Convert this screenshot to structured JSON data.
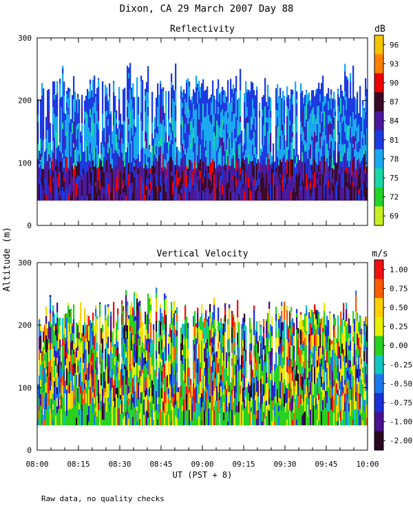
{
  "title": "Dixon, CA 29 March 2007  Day  88",
  "ylabel": "Altitude (m)",
  "xlabel": "UT  (PST + 8)",
  "footer": "Raw data, no quality checks",
  "chart_data": [
    {
      "type": "heatmap",
      "title": "Reflectivity",
      "ylabel": "Altitude (m)",
      "xlabel": "UT  (PST + 8)",
      "xlim": [
        "08:00",
        "10:00"
      ],
      "ylim": [
        0,
        300
      ],
      "x_ticks": [
        "08:00",
        "08:15",
        "08:30",
        "08:45",
        "09:00",
        "09:15",
        "09:30",
        "09:45",
        "10:00"
      ],
      "y_ticks": [
        0,
        100,
        200,
        300
      ],
      "colorbar": {
        "unit": "dB",
        "labels": [
          "96",
          "93",
          "90",
          "87",
          "84",
          "81",
          "78",
          "75",
          "72",
          "69"
        ],
        "colors": [
          "#f5c400",
          "#ff8000",
          "#ee0000",
          "#3a0a28",
          "#4a1a9c",
          "#1c3ae0",
          "#1aa8f0",
          "#18d8a8",
          "#22d42a",
          "#c8f020"
        ]
      },
      "data_description": {
        "echo_base_m": 40,
        "layer_top_m": [
          200,
          220
        ],
        "max_echo_top_m": 260,
        "core_below_m": 90
      }
    },
    {
      "type": "heatmap",
      "title": "Vertical Velocity",
      "ylabel": "Altitude (m)",
      "xlabel": "UT  (PST + 8)",
      "xlim": [
        "08:00",
        "10:00"
      ],
      "ylim": [
        0,
        300
      ],
      "x_ticks": [
        "08:00",
        "08:15",
        "08:30",
        "08:45",
        "09:00",
        "09:15",
        "09:30",
        "09:45",
        "10:00"
      ],
      "y_ticks": [
        0,
        100,
        200,
        300
      ],
      "colorbar": {
        "unit": "m/s",
        "labels": [
          "1.00",
          "0.75",
          "0.50",
          "0.25",
          "0.00",
          "-0.25",
          "-0.50",
          "-0.75",
          "-1.00",
          "-2.00"
        ],
        "colors": [
          "#f01010",
          "#ff5a00",
          "#ffd000",
          "#e6f000",
          "#28d020",
          "#10c8c0",
          "#1a78ec",
          "#1a30d8",
          "#4a1090",
          "#2a0820"
        ]
      },
      "data_description": {
        "echo_base_m": 40,
        "layer_top_m": [
          200,
          220
        ],
        "max_echo_top_m": 260
      }
    }
  ]
}
